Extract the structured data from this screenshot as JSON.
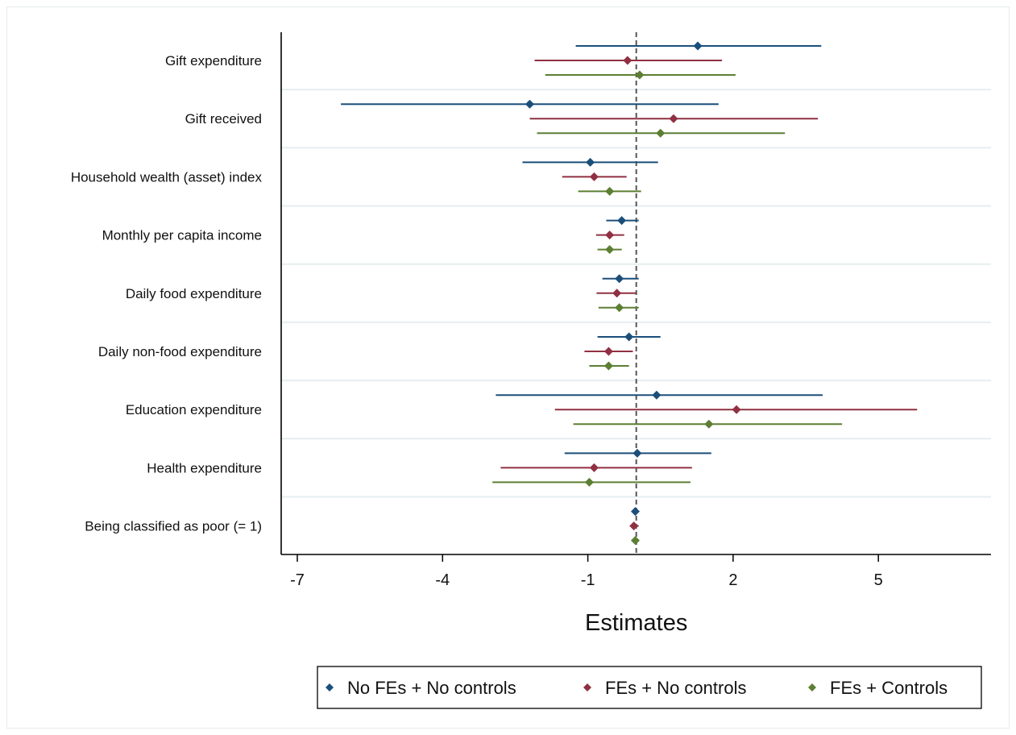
{
  "chart_data": {
    "type": "scatter",
    "subtype": "coefficient-plot",
    "xlabel": "Estimates",
    "ylabel": "",
    "xlim": [
      -7.35,
      7.3
    ],
    "xticks": [
      -7,
      -4,
      -1,
      2,
      5
    ],
    "reference_line": 0,
    "grid": "horizontal",
    "legend_position": "bottom",
    "categories": [
      "Gift expenditure",
      "Gift received",
      "Household wealth (asset) index",
      "Monthly per capita income",
      "Daily food expenditure",
      "Daily non-food expenditure",
      "Education expenditure",
      "Health expenditure",
      "Being classified as poor (= 1)"
    ],
    "series": [
      {
        "name": "No FEs + No controls",
        "color": "#1b4f7a",
        "estimates": [
          1.27,
          -2.2,
          -0.95,
          -0.3,
          -0.35,
          -0.15,
          0.42,
          0.02,
          -0.02
        ],
        "ci_low": [
          -1.25,
          -6.1,
          -2.35,
          -0.62,
          -0.7,
          -0.8,
          -2.9,
          -1.48,
          -0.07
        ],
        "ci_high": [
          3.82,
          1.7,
          0.45,
          0.05,
          0.05,
          0.5,
          3.85,
          1.55,
          0.04
        ]
      },
      {
        "name": "FEs + No controls",
        "color": "#903042",
        "estimates": [
          -0.18,
          0.77,
          -0.87,
          -0.55,
          -0.4,
          -0.57,
          2.07,
          -0.87,
          -0.05
        ],
        "ci_low": [
          -2.1,
          -2.2,
          -1.53,
          -0.83,
          -0.82,
          -1.07,
          -1.68,
          -2.8,
          -0.12
        ],
        "ci_high": [
          1.77,
          3.75,
          -0.2,
          -0.25,
          0.0,
          -0.07,
          5.8,
          1.15,
          0.05
        ]
      },
      {
        "name": "FEs + Controls",
        "color": "#5c7f33",
        "estimates": [
          0.07,
          0.5,
          -0.55,
          -0.55,
          -0.35,
          -0.57,
          1.5,
          -0.97,
          -0.02
        ],
        "ci_low": [
          -1.88,
          -2.05,
          -1.2,
          -0.8,
          -0.78,
          -0.97,
          -1.3,
          -2.97,
          -0.08
        ],
        "ci_high": [
          2.05,
          3.07,
          0.1,
          -0.3,
          0.05,
          -0.15,
          4.25,
          1.12,
          0.04
        ]
      }
    ]
  }
}
